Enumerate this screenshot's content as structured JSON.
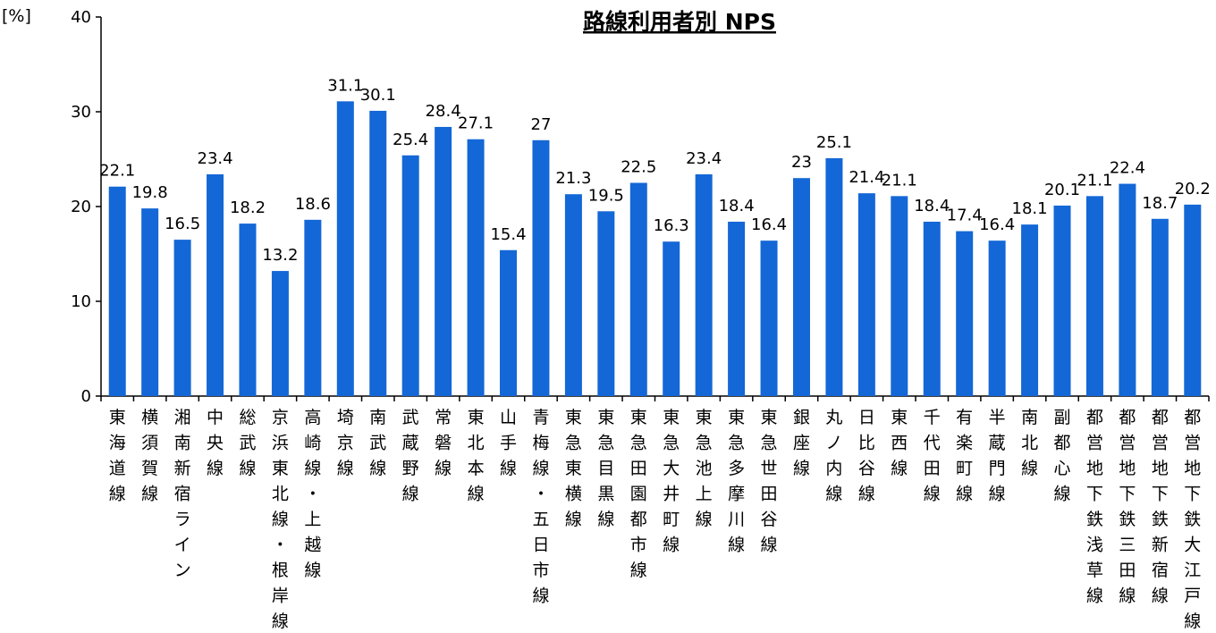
{
  "chart_data": {
    "type": "bar",
    "title": "路線利用者別 NPS",
    "unit_label": "[%]",
    "ylim": [
      0,
      40
    ],
    "yticks": [
      "0",
      "10",
      "20",
      "30",
      "40"
    ],
    "grid": false,
    "bar_color": "#1467d6",
    "categories": [
      "東海道線",
      "横須賀線",
      "湘南新宿ライン",
      "中央線",
      "総武線",
      "京浜東北線・根岸線",
      "高崎線・上越線",
      "埼京線",
      "南武線",
      "武蔵野線",
      "常磐線",
      "東北本線",
      "山手線",
      "青梅線・五日市線",
      "東急東横線",
      "東急目黒線",
      "東急田園都市線",
      "東急大井町線",
      "東急池上線",
      "東急多摩川線",
      "東急世田谷線",
      "銀座線",
      "丸ノ内線",
      "日比谷線",
      "東西線",
      "千代田線",
      "有楽町線",
      "半蔵門線",
      "南北線",
      "副都心線",
      "都営地下鉄浅草線",
      "都営地下鉄三田線",
      "都営地下鉄新宿線",
      "都営地下鉄大江戸線"
    ],
    "values": [
      22.1,
      19.8,
      16.5,
      23.4,
      18.2,
      13.2,
      18.6,
      31.1,
      30.1,
      25.4,
      28.4,
      27.1,
      15.4,
      27,
      21.3,
      19.5,
      22.5,
      16.3,
      23.4,
      18.4,
      16.4,
      23,
      25.1,
      21.4,
      21.1,
      18.4,
      17.4,
      16.4,
      18.1,
      20.1,
      21.1,
      22.4,
      18.7,
      20.2
    ],
    "data_labels": [
      "22.1",
      "19.8",
      "16.5",
      "23.4",
      "18.2",
      "13.2",
      "18.6",
      "31.1",
      "30.1",
      "25.4",
      "28.4",
      "27.1",
      "15.4",
      "27",
      "21.3",
      "19.5",
      "22.5",
      "16.3",
      "23.4",
      "18.4",
      "16.4",
      "23",
      "25.1",
      "21.4",
      "21.1",
      "18.4",
      "17.4",
      "16.4",
      "18.1",
      "20.1",
      "21.1",
      "22.4",
      "18.7",
      "20.2"
    ]
  }
}
